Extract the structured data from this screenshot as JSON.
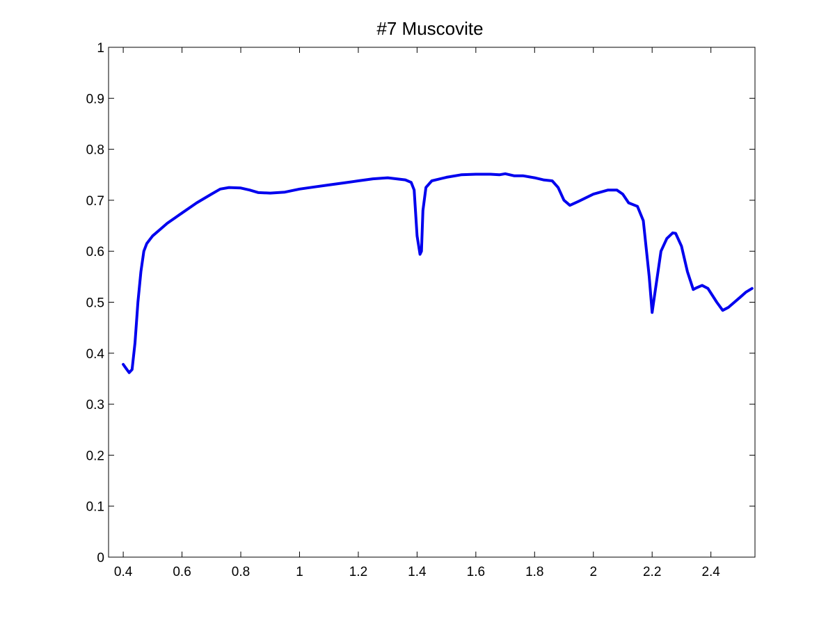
{
  "chart_data": {
    "type": "line",
    "title": "#7 Muscovite",
    "xlabel": "",
    "ylabel": "",
    "xlim": [
      0.35,
      2.55
    ],
    "ylim": [
      0,
      1
    ],
    "x_ticks": [
      0.4,
      0.6,
      0.8,
      1,
      1.2,
      1.4,
      1.6,
      1.8,
      2,
      2.2,
      2.4
    ],
    "x_tick_labels": [
      "0.4",
      "0.6",
      "0.8",
      "1",
      "1.2",
      "1.4",
      "1.6",
      "1.8",
      "2",
      "2.2",
      "2.4"
    ],
    "y_ticks": [
      0,
      0.1,
      0.2,
      0.3,
      0.4,
      0.5,
      0.6,
      0.7,
      0.8,
      0.9,
      1
    ],
    "y_tick_labels": [
      "0",
      "0.1",
      "0.2",
      "0.3",
      "0.4",
      "0.5",
      "0.6",
      "0.7",
      "0.8",
      "0.9",
      "1"
    ],
    "grid": false,
    "legend": "none",
    "series": [
      {
        "color": "#0000ee",
        "x": [
          0.4,
          0.41,
          0.42,
          0.43,
          0.44,
          0.45,
          0.46,
          0.47,
          0.48,
          0.5,
          0.52,
          0.55,
          0.6,
          0.65,
          0.7,
          0.73,
          0.76,
          0.8,
          0.83,
          0.86,
          0.9,
          0.95,
          1.0,
          1.05,
          1.1,
          1.15,
          1.2,
          1.25,
          1.3,
          1.33,
          1.36,
          1.38,
          1.39,
          1.4,
          1.41,
          1.415,
          1.42,
          1.43,
          1.45,
          1.5,
          1.55,
          1.6,
          1.65,
          1.68,
          1.7,
          1.73,
          1.76,
          1.8,
          1.83,
          1.86,
          1.88,
          1.9,
          1.92,
          1.95,
          2.0,
          2.05,
          2.08,
          2.1,
          2.12,
          2.15,
          2.17,
          2.19,
          2.2,
          2.21,
          2.23,
          2.25,
          2.27,
          2.28,
          2.3,
          2.32,
          2.34,
          2.35,
          2.37,
          2.39,
          2.42,
          2.44,
          2.46,
          2.48,
          2.5,
          2.52,
          2.54
        ],
        "y": [
          0.378,
          0.37,
          0.362,
          0.368,
          0.42,
          0.5,
          0.56,
          0.6,
          0.615,
          0.63,
          0.64,
          0.655,
          0.675,
          0.695,
          0.712,
          0.722,
          0.725,
          0.724,
          0.72,
          0.715,
          0.714,
          0.716,
          0.722,
          0.726,
          0.73,
          0.734,
          0.738,
          0.742,
          0.744,
          0.742,
          0.74,
          0.735,
          0.72,
          0.63,
          0.594,
          0.6,
          0.68,
          0.725,
          0.738,
          0.745,
          0.75,
          0.751,
          0.751,
          0.75,
          0.752,
          0.748,
          0.748,
          0.744,
          0.74,
          0.738,
          0.725,
          0.7,
          0.69,
          0.698,
          0.712,
          0.72,
          0.72,
          0.712,
          0.695,
          0.688,
          0.66,
          0.55,
          0.48,
          0.52,
          0.6,
          0.625,
          0.636,
          0.635,
          0.61,
          0.56,
          0.525,
          0.528,
          0.533,
          0.527,
          0.5,
          0.484,
          0.49,
          0.5,
          0.51,
          0.52,
          0.527
        ]
      }
    ]
  }
}
